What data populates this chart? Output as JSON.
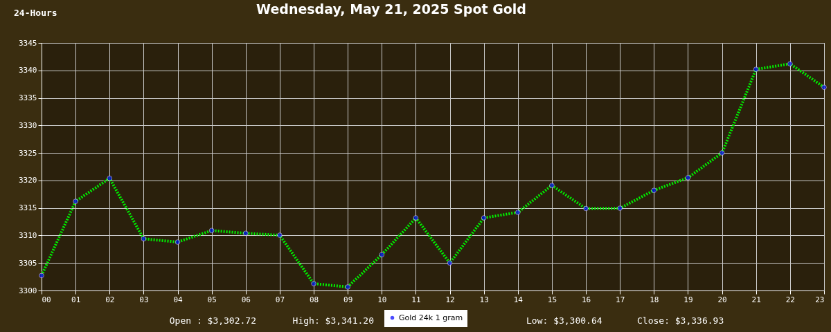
{
  "chart_data": {
    "type": "line",
    "title": "Wednesday, May 21, 2025 Spot Gold",
    "categories": [
      "00",
      "01",
      "02",
      "03",
      "04",
      "05",
      "06",
      "07",
      "08",
      "09",
      "10",
      "11",
      "12",
      "13",
      "14",
      "15",
      "16",
      "17",
      "18",
      "19",
      "20",
      "21",
      "22",
      "23"
    ],
    "series": [
      {
        "name": "Gold 24k 1 gram",
        "color": "#00ee00",
        "values": [
          3302.72,
          3316.2,
          3320.4,
          3309.4,
          3308.8,
          3310.9,
          3310.4,
          3310.05,
          3301.25,
          3300.64,
          3306.5,
          3313.2,
          3305.0,
          3313.2,
          3314.2,
          3319.1,
          3314.9,
          3314.95,
          3318.2,
          3320.5,
          3325.0,
          3340.2,
          3341.2,
          3336.93
        ]
      }
    ],
    "ylim": [
      3300,
      3345
    ],
    "yticks": [
      3300,
      3305,
      3310,
      3315,
      3320,
      3325,
      3330,
      3335,
      3340,
      3345
    ],
    "grid": true,
    "legend": "bottom",
    "marker": "circle",
    "line_style": "dotted",
    "annotations": [
      "24-Hours",
      "Open : $3,302.72",
      "High: $3,341.20",
      "Low: $3,300.64",
      "Close: $3,336.93"
    ]
  }
}
